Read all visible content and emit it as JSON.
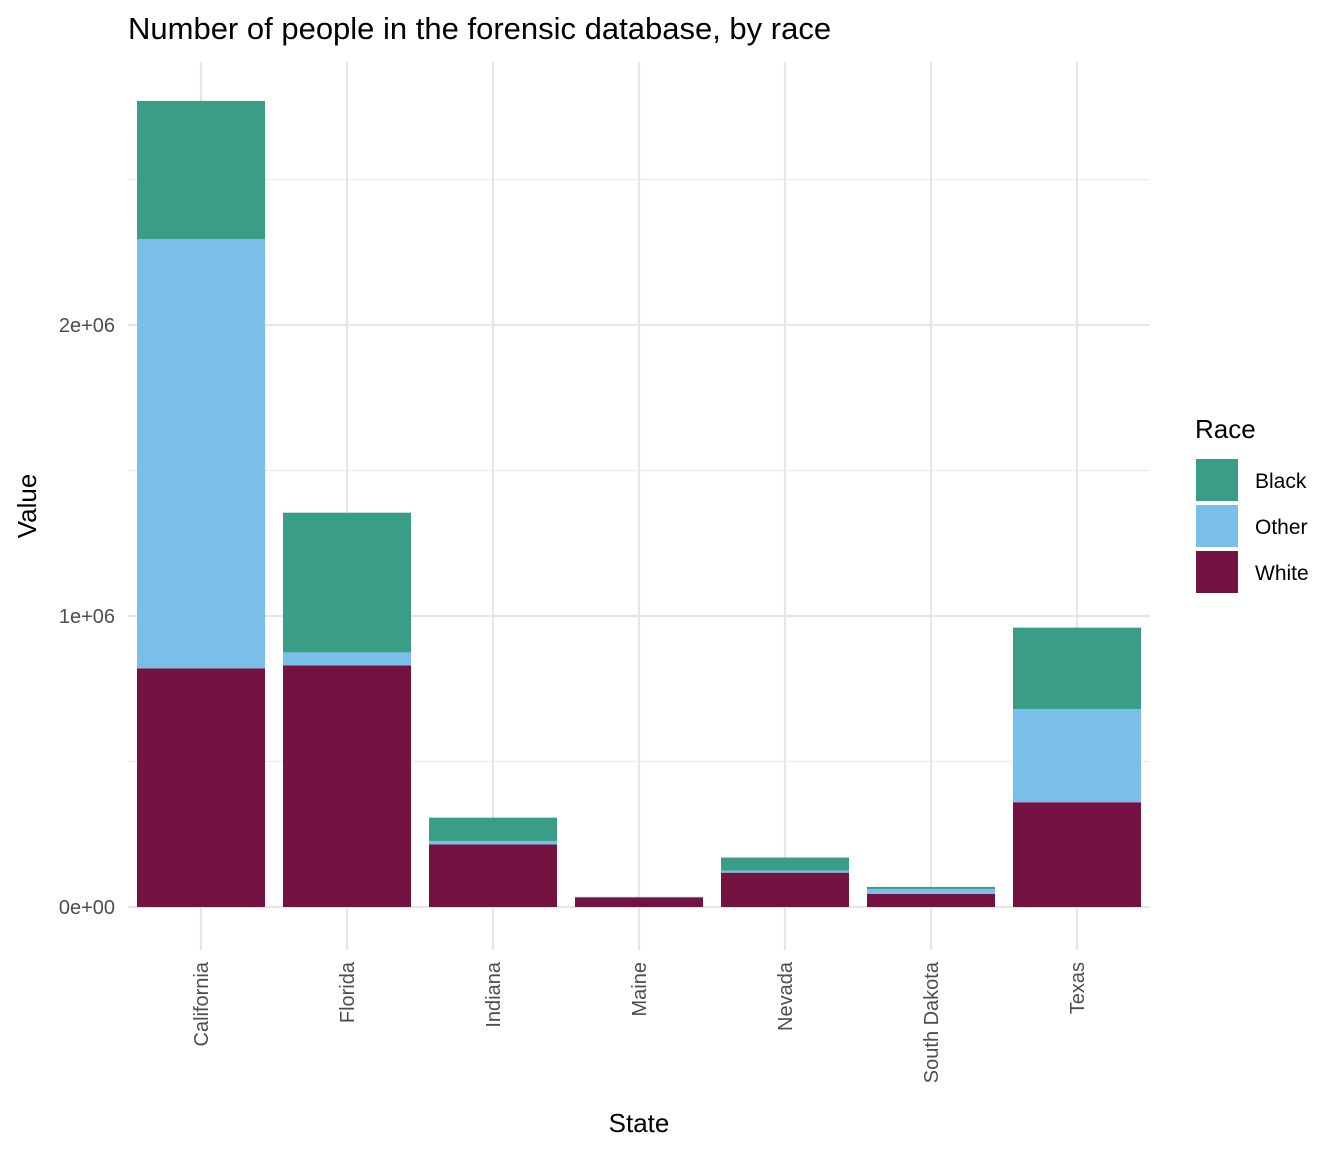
{
  "chart_data": {
    "type": "bar",
    "stacked": true,
    "title": "Number of people in the forensic database, by race",
    "xlabel": "State",
    "ylabel": "Value",
    "categories": [
      "California",
      "Florida",
      "Indiana",
      "Maine",
      "Nevada",
      "South Dakota",
      "Texas"
    ],
    "series": [
      {
        "name": "White",
        "color": "#741342",
        "values": [
          820000,
          830000,
          215000,
          33000,
          118000,
          45000,
          360000
        ]
      },
      {
        "name": "Other",
        "color": "#7ABFEA",
        "values": [
          1475000,
          45000,
          12000,
          2000,
          7000,
          17000,
          320000
        ]
      },
      {
        "name": "Black",
        "color": "#3A9E87",
        "values": [
          475000,
          480000,
          80000,
          0,
          45000,
          7000,
          280000
        ]
      }
    ],
    "ylim": [
      0,
      2800000
    ],
    "yticks": [
      0,
      1000000,
      2000000
    ],
    "ytick_labels": [
      "0e+00",
      "1e+06",
      "2e+06"
    ],
    "grid": true,
    "legend": {
      "title": "Race",
      "position": "right",
      "order": [
        "Black",
        "Other",
        "White"
      ]
    }
  }
}
